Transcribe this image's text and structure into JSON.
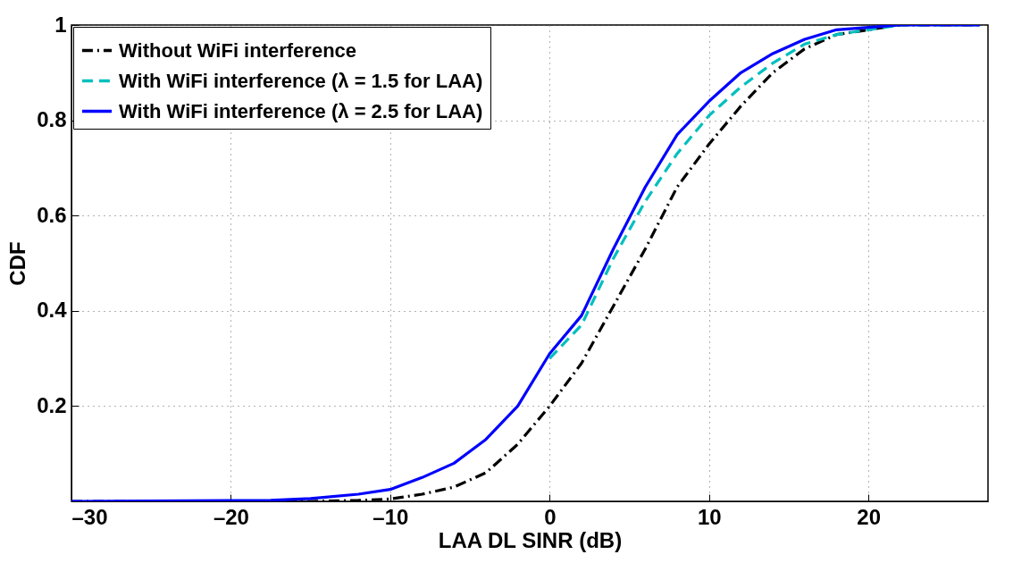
{
  "chart_data": {
    "type": "line",
    "xlabel": "LAA DL SINR (dB)",
    "ylabel": "CDF",
    "xlim": [
      -30,
      27.5
    ],
    "ylim": [
      0,
      1
    ],
    "xticks": [
      {
        "value": -30,
        "label": "–30"
      },
      {
        "value": -20,
        "label": "–20"
      },
      {
        "value": -10,
        "label": "–10"
      },
      0,
      10,
      20
    ],
    "yticks": [
      0.2,
      0.4,
      0.6,
      0.8,
      1
    ],
    "grid": true,
    "legend": "top left",
    "x": [
      -30,
      -17.5,
      -15,
      -12,
      -10,
      -8,
      -6,
      -4,
      -2,
      0,
      2,
      4,
      6,
      8,
      10,
      12,
      14,
      16,
      18,
      20,
      22,
      27
    ],
    "series": [
      {
        "name": "Without WiFi interference",
        "color": "#000000",
        "line_style": "dashdot",
        "values": [
          0,
          0,
          0,
          0.002,
          0.005,
          0.015,
          0.03,
          0.06,
          0.12,
          0.2,
          0.29,
          0.41,
          0.53,
          0.66,
          0.75,
          0.83,
          0.9,
          0.95,
          0.98,
          0.99,
          1,
          1
        ]
      },
      {
        "name": "With WiFi interference (λ = 1.5 for LAA)",
        "color": "#00bfbf",
        "line_style": "dashed",
        "values": [
          null,
          null,
          null,
          null,
          null,
          null,
          null,
          null,
          null,
          0.3,
          0.37,
          0.51,
          0.63,
          0.73,
          0.81,
          0.87,
          0.92,
          0.96,
          0.98,
          0.99,
          1,
          1
        ]
      },
      {
        "name": "With WiFi interference (λ = 2.5 for LAA)",
        "color": "#0000ff",
        "line_style": "solid",
        "values": [
          0,
          0.002,
          0.006,
          0.015,
          0.025,
          0.05,
          0.08,
          0.13,
          0.2,
          0.31,
          0.39,
          0.53,
          0.66,
          0.77,
          0.84,
          0.9,
          0.94,
          0.97,
          0.99,
          0.995,
          1,
          1
        ]
      }
    ]
  }
}
